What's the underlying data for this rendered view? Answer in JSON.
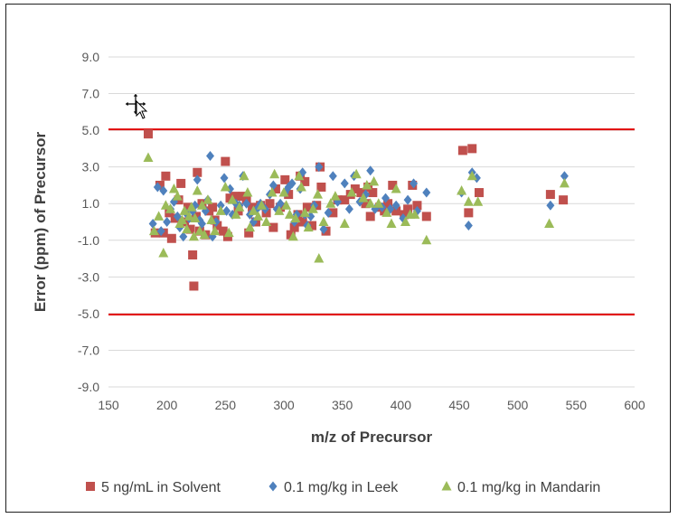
{
  "chart_data": {
    "type": "scatter",
    "xlabel": "m/z of Precursor",
    "ylabel": "Error (ppm) of Precursor",
    "xlim": [
      150,
      600
    ],
    "ylim": [
      -9,
      9
    ],
    "x_ticks": [
      "150",
      "200",
      "250",
      "300",
      "350",
      "400",
      "450",
      "500",
      "550",
      "600"
    ],
    "y_ticks": [
      "9.0",
      "7.0",
      "5.0",
      "3.0",
      "1.0",
      "-1.0",
      "-3.0",
      "-5.0",
      "-7.0",
      "-9.0"
    ],
    "grid": "horizontal",
    "legend_position": "bottom",
    "reference_lines": [
      5.05,
      -5.05
    ],
    "reference_color": "#e00000",
    "series": [
      {
        "name": "5 ng/mL in Solvent",
        "marker": "square",
        "color": "#c0504d",
        "points": [
          [
            184,
            4.8
          ],
          [
            190,
            -0.6
          ],
          [
            194,
            2.0
          ],
          [
            197,
            -0.6
          ],
          [
            199,
            2.5
          ],
          [
            202,
            0.5
          ],
          [
            204,
            -0.9
          ],
          [
            207,
            0.2
          ],
          [
            210,
            1.2
          ],
          [
            212,
            2.1
          ],
          [
            215,
            0.0
          ],
          [
            218,
            0.8
          ],
          [
            220,
            -0.4
          ],
          [
            222,
            -1.8
          ],
          [
            223,
            -3.5
          ],
          [
            225,
            0.3
          ],
          [
            226,
            2.7
          ],
          [
            228,
            -0.5
          ],
          [
            230,
            1.0
          ],
          [
            233,
            -0.7
          ],
          [
            236,
            0.6
          ],
          [
            239,
            0.8
          ],
          [
            241,
            0.1
          ],
          [
            243,
            -0.2
          ],
          [
            248,
            -0.5
          ],
          [
            250,
            3.3
          ],
          [
            252,
            -0.8
          ],
          [
            254,
            1.3
          ],
          [
            258,
            1.4
          ],
          [
            261,
            0.6
          ],
          [
            265,
            1.4
          ],
          [
            268,
            1.2
          ],
          [
            270,
            -0.6
          ],
          [
            273,
            0.8
          ],
          [
            276,
            0.0
          ],
          [
            280,
            0.9
          ],
          [
            285,
            0.5
          ],
          [
            288,
            1.0
          ],
          [
            291,
            -0.3
          ],
          [
            293,
            1.8
          ],
          [
            297,
            0.8
          ],
          [
            301,
            2.3
          ],
          [
            304,
            1.5
          ],
          [
            306,
            -0.7
          ],
          [
            309,
            -0.3
          ],
          [
            312,
            0.4
          ],
          [
            314,
            2.5
          ],
          [
            316,
            0.0
          ],
          [
            318,
            2.2
          ],
          [
            320,
            0.8
          ],
          [
            324,
            -0.2
          ],
          [
            328,
            0.9
          ],
          [
            331,
            3.0
          ],
          [
            332,
            1.9
          ],
          [
            336,
            -0.5
          ],
          [
            342,
            0.5
          ],
          [
            346,
            1.2
          ],
          [
            352,
            1.2
          ],
          [
            357,
            1.5
          ],
          [
            361,
            1.8
          ],
          [
            366,
            1.6
          ],
          [
            370,
            1.0
          ],
          [
            372,
            1.9
          ],
          [
            374,
            0.3
          ],
          [
            376,
            1.6
          ],
          [
            382,
            0.8
          ],
          [
            386,
            0.6
          ],
          [
            389,
            1.0
          ],
          [
            393,
            2.0
          ],
          [
            396,
            0.6
          ],
          [
            403,
            0.4
          ],
          [
            406,
            0.7
          ],
          [
            410,
            2.0
          ],
          [
            414,
            0.9
          ],
          [
            422,
            0.3
          ],
          [
            453,
            3.9
          ],
          [
            458,
            0.5
          ],
          [
            461,
            4.0
          ],
          [
            467,
            1.6
          ],
          [
            528,
            1.5
          ],
          [
            539,
            1.2
          ]
        ]
      },
      {
        "name": "0.1 mg/kg in Leek",
        "marker": "diamond",
        "color": "#4f81bd",
        "points": [
          [
            188,
            -0.1
          ],
          [
            192,
            1.9
          ],
          [
            195,
            -0.5
          ],
          [
            197,
            1.7
          ],
          [
            200,
            0.0
          ],
          [
            203,
            0.7
          ],
          [
            206,
            1.1
          ],
          [
            209,
            0.3
          ],
          [
            211,
            -0.3
          ],
          [
            214,
            -0.8
          ],
          [
            216,
            0.5
          ],
          [
            219,
            0.2
          ],
          [
            222,
            0.6
          ],
          [
            224,
            0.9
          ],
          [
            226,
            2.3
          ],
          [
            228,
            0.1
          ],
          [
            230,
            -0.1
          ],
          [
            233,
            0.6
          ],
          [
            235,
            1.2
          ],
          [
            237,
            3.6
          ],
          [
            239,
            -0.8
          ],
          [
            242,
            0.0
          ],
          [
            246,
            0.9
          ],
          [
            249,
            2.4
          ],
          [
            251,
            0.6
          ],
          [
            254,
            1.8
          ],
          [
            256,
            0.4
          ],
          [
            259,
            1.0
          ],
          [
            262,
            0.9
          ],
          [
            265,
            2.5
          ],
          [
            268,
            1.0
          ],
          [
            271,
            0.4
          ],
          [
            274,
            0.0
          ],
          [
            277,
            0.7
          ],
          [
            280,
            1.0
          ],
          [
            284,
            0.7
          ],
          [
            288,
            1.5
          ],
          [
            291,
            2.0
          ],
          [
            294,
            0.7
          ],
          [
            297,
            1.0
          ],
          [
            301,
            1.6
          ],
          [
            304,
            1.9
          ],
          [
            307,
            2.1
          ],
          [
            309,
            0.0
          ],
          [
            311,
            0.4
          ],
          [
            314,
            1.8
          ],
          [
            316,
            2.7
          ],
          [
            318,
            0.4
          ],
          [
            320,
            -0.2
          ],
          [
            323,
            0.3
          ],
          [
            326,
            0.9
          ],
          [
            330,
            3.0
          ],
          [
            334,
            -0.4
          ],
          [
            338,
            0.5
          ],
          [
            342,
            2.5
          ],
          [
            346,
            1.1
          ],
          [
            352,
            2.1
          ],
          [
            356,
            0.7
          ],
          [
            360,
            2.5
          ],
          [
            365,
            1.1
          ],
          [
            370,
            1.5
          ],
          [
            374,
            2.8
          ],
          [
            378,
            0.7
          ],
          [
            384,
            0.8
          ],
          [
            387,
            1.3
          ],
          [
            391,
            0.7
          ],
          [
            396,
            0.9
          ],
          [
            402,
            0.2
          ],
          [
            406,
            1.2
          ],
          [
            411,
            2.1
          ],
          [
            414,
            0.6
          ],
          [
            422,
            1.6
          ],
          [
            452,
            1.6
          ],
          [
            458,
            -0.2
          ],
          [
            461,
            2.7
          ],
          [
            465,
            2.4
          ],
          [
            528,
            0.9
          ],
          [
            540,
            2.5
          ]
        ]
      },
      {
        "name": "0.1 mg/kg in Mandarin",
        "marker": "triangle",
        "color": "#9bbb59",
        "points": [
          [
            184,
            3.5
          ],
          [
            189,
            -0.5
          ],
          [
            193,
            0.3
          ],
          [
            197,
            -1.7
          ],
          [
            199,
            0.9
          ],
          [
            203,
            0.7
          ],
          [
            206,
            1.8
          ],
          [
            209,
            1.4
          ],
          [
            211,
            -0.1
          ],
          [
            213,
            0.1
          ],
          [
            215,
            0.6
          ],
          [
            217,
            -0.4
          ],
          [
            219,
            0.3
          ],
          [
            221,
            0.8
          ],
          [
            223,
            -0.8
          ],
          [
            224,
            0.2
          ],
          [
            226,
            1.7
          ],
          [
            228,
            -0.5
          ],
          [
            230,
            0.9
          ],
          [
            232,
            -0.7
          ],
          [
            235,
            1.2
          ],
          [
            238,
            0.1
          ],
          [
            241,
            -0.5
          ],
          [
            246,
            0.6
          ],
          [
            250,
            1.9
          ],
          [
            253,
            -0.6
          ],
          [
            256,
            1.2
          ],
          [
            259,
            0.4
          ],
          [
            262,
            0.8
          ],
          [
            266,
            2.5
          ],
          [
            269,
            1.6
          ],
          [
            271,
            -0.3
          ],
          [
            274,
            0.6
          ],
          [
            278,
            0.3
          ],
          [
            281,
            0.9
          ],
          [
            285,
            0.0
          ],
          [
            290,
            1.6
          ],
          [
            292,
            2.6
          ],
          [
            296,
            0.6
          ],
          [
            300,
            1.6
          ],
          [
            302,
            0.9
          ],
          [
            305,
            0.4
          ],
          [
            308,
            -0.8
          ],
          [
            310,
            0.2
          ],
          [
            313,
            2.5
          ],
          [
            315,
            1.9
          ],
          [
            318,
            0.5
          ],
          [
            321,
            -0.3
          ],
          [
            325,
            0.7
          ],
          [
            329,
            1.5
          ],
          [
            330,
            -2.0
          ],
          [
            334,
            0.0
          ],
          [
            340,
            1.0
          ],
          [
            344,
            1.4
          ],
          [
            352,
            -0.1
          ],
          [
            358,
            1.6
          ],
          [
            362,
            2.6
          ],
          [
            368,
            1.3
          ],
          [
            371,
            2.0
          ],
          [
            374,
            1.0
          ],
          [
            377,
            2.2
          ],
          [
            381,
            1.0
          ],
          [
            388,
            0.5
          ],
          [
            392,
            -0.1
          ],
          [
            396,
            1.8
          ],
          [
            404,
            0.0
          ],
          [
            408,
            0.4
          ],
          [
            412,
            0.4
          ],
          [
            422,
            -1.0
          ],
          [
            452,
            1.7
          ],
          [
            458,
            1.1
          ],
          [
            461,
            2.5
          ],
          [
            466,
            1.1
          ],
          [
            527,
            -0.1
          ],
          [
            540,
            2.1
          ]
        ]
      }
    ]
  }
}
